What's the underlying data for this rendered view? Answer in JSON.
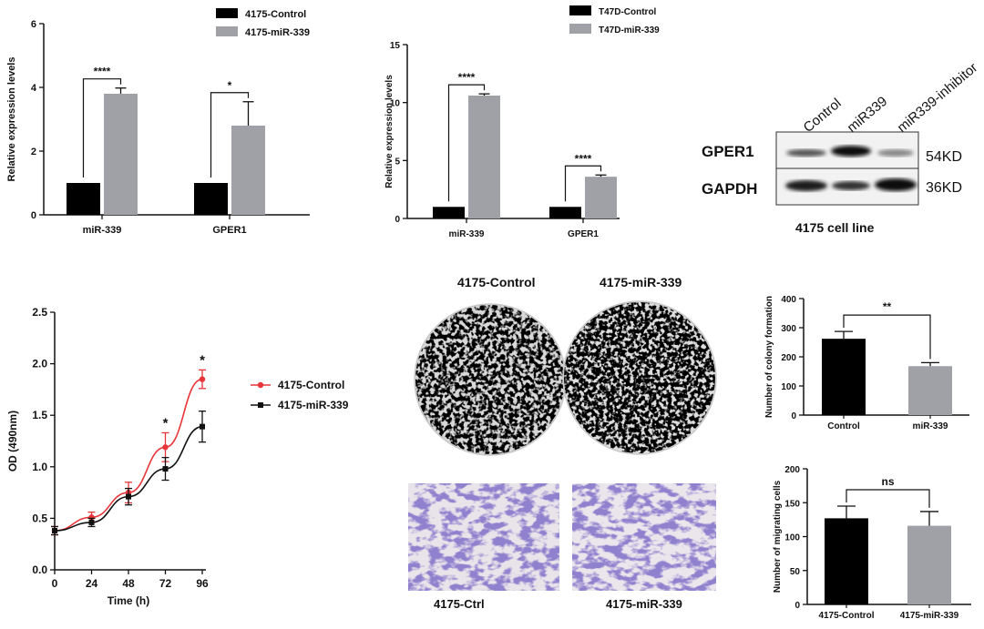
{
  "chart_data": [
    {
      "id": "expr4175",
      "type": "bar",
      "categories": [
        "miR-339",
        "GPER1"
      ],
      "series": [
        {
          "name": "4175-Control",
          "values": [
            1.0,
            1.0
          ],
          "errors": [
            0,
            0
          ],
          "color": "#000000"
        },
        {
          "name": "4175-miR-339",
          "values": [
            3.8,
            2.8
          ],
          "errors": [
            0.18,
            0.75
          ],
          "color": "#a0a1a6"
        }
      ],
      "ylabel": "Relative expression levels",
      "ylim": [
        0,
        6
      ],
      "yticks": [
        0,
        2,
        4,
        6
      ],
      "significance": [
        "****",
        "*"
      ],
      "legend": "top-right"
    },
    {
      "id": "exprT47D",
      "type": "bar",
      "categories": [
        "miR-339",
        "GPER1"
      ],
      "series": [
        {
          "name": "T47D-Control",
          "values": [
            1.0,
            1.0
          ],
          "errors": [
            0,
            0
          ],
          "color": "#000000"
        },
        {
          "name": "T47D-miR-339",
          "values": [
            10.6,
            3.6
          ],
          "errors": [
            0.15,
            0.15
          ],
          "color": "#a0a1a6"
        }
      ],
      "ylabel": "Relative expression levels",
      "ylim": [
        0,
        15
      ],
      "yticks": [
        0,
        5,
        10,
        15
      ],
      "significance": [
        "****",
        "****"
      ],
      "legend": "top-right"
    },
    {
      "id": "od",
      "type": "line",
      "x": [
        0,
        24,
        48,
        72,
        96
      ],
      "series": [
        {
          "name": "4175-Control",
          "values": [
            0.38,
            0.51,
            0.75,
            1.19,
            1.85
          ],
          "errors": [
            0.04,
            0.05,
            0.1,
            0.14,
            0.09
          ],
          "color": "#e8353a",
          "marker": "circle"
        },
        {
          "name": "4175-miR-339",
          "values": [
            0.38,
            0.46,
            0.71,
            0.98,
            1.39
          ],
          "errors": [
            0.04,
            0.04,
            0.08,
            0.11,
            0.15
          ],
          "color": "#111111",
          "marker": "square"
        }
      ],
      "xlabel": "Time (h)",
      "ylabel": "OD (490nm)",
      "ylim": [
        0,
        2.5
      ],
      "yticks": [
        "0.0",
        "0.5",
        "1.0",
        "1.5",
        "2.0",
        "2.5"
      ],
      "xticks": [
        0,
        24,
        48,
        72,
        96
      ],
      "significance": [
        {
          "x": 72,
          "label": "*"
        },
        {
          "x": 96,
          "label": "*"
        }
      ],
      "legend": "right"
    },
    {
      "id": "colony",
      "type": "bar",
      "categories": [
        "Control",
        "miR-339"
      ],
      "values": [
        262,
        168
      ],
      "errors": [
        25,
        12
      ],
      "colors": [
        "#000000",
        "#a0a1a6"
      ],
      "ylabel": "Number of colony formation",
      "ylim": [
        0,
        400
      ],
      "yticks": [
        0,
        100,
        200,
        300,
        400
      ],
      "significance": "**"
    },
    {
      "id": "migration",
      "type": "bar",
      "categories": [
        "4175-Control",
        "4175-miR-339"
      ],
      "values": [
        127,
        116
      ],
      "errors": [
        18,
        21
      ],
      "colors": [
        "#000000",
        "#a0a1a6"
      ],
      "ylabel": "Number of migrating cells",
      "ylim": [
        0,
        200
      ],
      "yticks": [
        0,
        50,
        100,
        150,
        200
      ],
      "significance": "ns"
    }
  ],
  "western": {
    "lanes": [
      "Control",
      "miR339",
      "miR339-inhibitor"
    ],
    "rows": [
      {
        "name": "GPER1",
        "size": "54KD"
      },
      {
        "name": "GAPDH",
        "size": "36KD"
      }
    ],
    "caption": "4175 cell line"
  },
  "images": {
    "colony_titles": [
      "4175-Control",
      "4175-miR-339"
    ],
    "migration_labels": [
      "4175-Ctrl",
      "4175-miR-339"
    ]
  }
}
